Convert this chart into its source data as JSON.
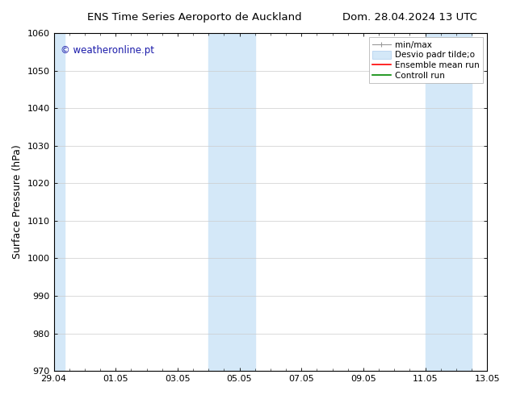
{
  "title_left": "ENS Time Series Aeroporto de Auckland",
  "title_right": "Dom. 28.04.2024 13 UTC",
  "ylabel": "Surface Pressure (hPa)",
  "ylim": [
    970,
    1060
  ],
  "yticks": [
    970,
    980,
    990,
    1000,
    1010,
    1020,
    1030,
    1040,
    1050,
    1060
  ],
  "xtick_positions": [
    0,
    2,
    4,
    6,
    8,
    10,
    12,
    14
  ],
  "xtick_labels": [
    "29.04",
    "01.05",
    "03.05",
    "05.05",
    "07.05",
    "09.05",
    "11.05",
    "13.05"
  ],
  "watermark": "© weatheronline.pt",
  "watermark_color": "#1a1aaa",
  "background_color": "#ffffff",
  "plot_bg_color": "#ffffff",
  "shaded_bands": [
    {
      "x_start": 0.0,
      "x_end": 0.35,
      "color": "#d4e8f8"
    },
    {
      "x_start": 5.0,
      "x_end": 6.5,
      "color": "#d4e8f8"
    },
    {
      "x_start": 12.0,
      "x_end": 13.5,
      "color": "#d4e8f8"
    }
  ],
  "legend_entries": [
    {
      "label": "min/max",
      "color": "#aaaaaa",
      "lw": 1.0
    },
    {
      "label": "Desvio padr tilde;o",
      "color": "#d4e8f8",
      "lw": 6
    },
    {
      "label": "Ensemble mean run",
      "color": "#ff0000",
      "lw": 1.2
    },
    {
      "label": "Controll run",
      "color": "#008800",
      "lw": 1.2
    }
  ],
  "title_fontsize": 9.5,
  "tick_fontsize": 8,
  "ylabel_fontsize": 9,
  "watermark_fontsize": 8.5,
  "legend_fontsize": 7.5,
  "grid_color": "#cccccc",
  "spine_color": "#000000",
  "x_total": 14.0
}
